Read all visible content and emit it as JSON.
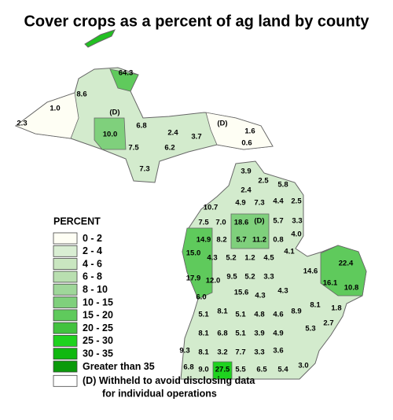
{
  "title": "Cover crops as a percent of ag land by county",
  "legend": {
    "title": "PERCENT",
    "items": [
      {
        "label": "0 - 2",
        "color": "#fefef4"
      },
      {
        "label": "2 - 4",
        "color": "#d9eed3"
      },
      {
        "label": "4 - 6",
        "color": "#c9e6c0"
      },
      {
        "label": "6 - 8",
        "color": "#b9dfb0"
      },
      {
        "label": "8 - 10",
        "color": "#9fd79a"
      },
      {
        "label": "10 - 15",
        "color": "#7fd07c"
      },
      {
        "label": "15 - 20",
        "color": "#5fca5c"
      },
      {
        "label": "20 - 25",
        "color": "#42c23f"
      },
      {
        "label": "25 - 30",
        "color": "#1fd21f"
      },
      {
        "label": "30 - 35",
        "color": "#10b810"
      },
      {
        "label": "Greater than 35",
        "color": "#0a9a0a"
      }
    ],
    "withheld": {
      "label": "(D) Withheld to avoid disclosing data",
      "label2": "for individual operations",
      "color": "#ffffff"
    }
  },
  "counties": [
    "64.3",
    "8.6",
    "(D)",
    "1.0",
    "2.3",
    "6.8",
    "(D)",
    "1.6",
    "0.6",
    "10.0",
    "2.4",
    "3.7",
    "7.5",
    "6.2",
    "7.3",
    "3.9",
    "2.5",
    "5.8",
    "2.4",
    "4.9",
    "7.3",
    "4.4",
    "2.5",
    "10.7",
    "7.5",
    "7.0",
    "18.6",
    "(D)",
    "5.7",
    "3.3",
    "14.9",
    "8.2",
    "5.7",
    "11.2",
    "0.8",
    "4.0",
    "4.1",
    "22.4",
    "15.0",
    "4.3",
    "5.2",
    "1.2",
    "4.5",
    "14.6",
    "16.1",
    "10.8",
    "17.9",
    "12.0",
    "9.5",
    "5.2",
    "3.3",
    "15.6",
    "4.3",
    "4.3",
    "6.0",
    "8.1",
    "1.8",
    "5.1",
    "8.1",
    "5.1",
    "4.8",
    "4.6",
    "8.9",
    "5.3",
    "2.7",
    "8.1",
    "6.8",
    "5.1",
    "3.9",
    "4.9",
    "9.3",
    "8.1",
    "3.2",
    "7.7",
    "3.3",
    "3.6",
    "6.8",
    "9.0",
    "27.5",
    "5.5",
    "6.5",
    "5.4",
    "3.0"
  ]
}
